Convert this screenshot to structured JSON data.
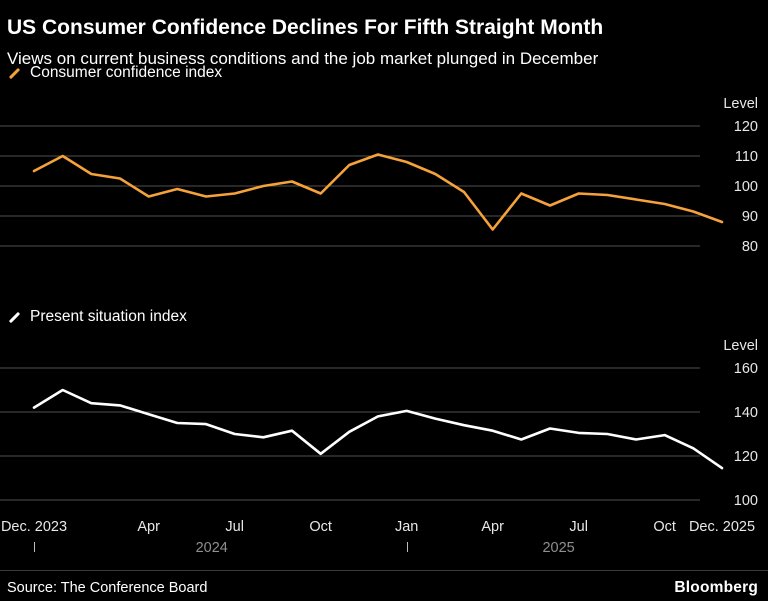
{
  "header": {
    "title": "US Consumer Confidence Declines For Fifth Straight Month",
    "subtitle": "Views on current business conditions and the job market plunged in December"
  },
  "colors": {
    "background": "#000000",
    "cci_line": "#F6A23B",
    "psi_line": "#FFFFFF",
    "grid": "#4F4F4F",
    "axis_label": "#E8E8E8",
    "year_label": "#8F8F8F"
  },
  "x_axis": {
    "tick_labels": [
      {
        "label": "Dec. 2023",
        "index": 0
      },
      {
        "label": "Apr",
        "index": 4
      },
      {
        "label": "Jul",
        "index": 7
      },
      {
        "label": "Oct",
        "index": 10
      },
      {
        "label": "Jan",
        "index": 13
      },
      {
        "label": "Apr",
        "index": 16
      },
      {
        "label": "Jul",
        "index": 19
      },
      {
        "label": "Oct",
        "index": 22
      },
      {
        "label": "Dec. 2025",
        "index": 24
      }
    ],
    "year_ticks": [
      0,
      13
    ],
    "year_labels": [
      {
        "label": "2024",
        "position": 6.2
      },
      {
        "label": "2025",
        "position": 18.3
      }
    ]
  },
  "chart_data": [
    {
      "type": "line",
      "title": "Consumer confidence index",
      "unit_label": "Level",
      "grid": "horizontal",
      "legend_position": "top-left",
      "line_color": "#F6A23B",
      "ylim": [
        80,
        120
      ],
      "yticks": [
        120,
        110,
        100,
        90,
        80
      ],
      "x_months": [
        "Dec 2023",
        "Jan 2024",
        "Feb 2024",
        "Mar 2024",
        "Apr 2024",
        "May 2024",
        "Jun 2024",
        "Jul 2024",
        "Aug 2024",
        "Sep 2024",
        "Oct 2024",
        "Nov 2024",
        "Dec 2024",
        "Jan 2025",
        "Feb 2025",
        "Mar 2025",
        "Apr 2025",
        "May 2025",
        "Jun 2025",
        "Jul 2025",
        "Aug 2025",
        "Sep 2025",
        "Oct 2025",
        "Nov 2025",
        "Dec 2025"
      ],
      "values": [
        105,
        110,
        104,
        102.5,
        96.5,
        99,
        96.5,
        97.5,
        100,
        101.5,
        97.5,
        107,
        110.5,
        108,
        104,
        98,
        85.5,
        97.5,
        93.5,
        97.5,
        97,
        95.5,
        94,
        91.5,
        88
      ]
    },
    {
      "type": "line",
      "title": "Present situation index",
      "unit_label": "Level",
      "grid": "horizontal",
      "legend_position": "top-left",
      "line_color": "#FFFFFF",
      "ylim": [
        100,
        160
      ],
      "yticks": [
        160,
        140,
        120,
        100
      ],
      "x_months": [
        "Dec 2023",
        "Jan 2024",
        "Feb 2024",
        "Mar 2024",
        "Apr 2024",
        "May 2024",
        "Jun 2024",
        "Jul 2024",
        "Aug 2024",
        "Sep 2024",
        "Oct 2024",
        "Nov 2024",
        "Dec 2024",
        "Jan 2025",
        "Feb 2025",
        "Mar 2025",
        "Apr 2025",
        "May 2025",
        "Jun 2025",
        "Jul 2025",
        "Aug 2025",
        "Sep 2025",
        "Oct 2025",
        "Nov 2025",
        "Dec 2025"
      ],
      "values": [
        142,
        150,
        144,
        143,
        139,
        135,
        134.5,
        130,
        128.5,
        131.5,
        121,
        131,
        138,
        140.5,
        137,
        134,
        131.5,
        127.5,
        132.5,
        130.5,
        130,
        127.5,
        129.5,
        123.5,
        114.5
      ]
    }
  ],
  "footer": {
    "source": "Source: The Conference Board",
    "brand": "Bloomberg"
  }
}
